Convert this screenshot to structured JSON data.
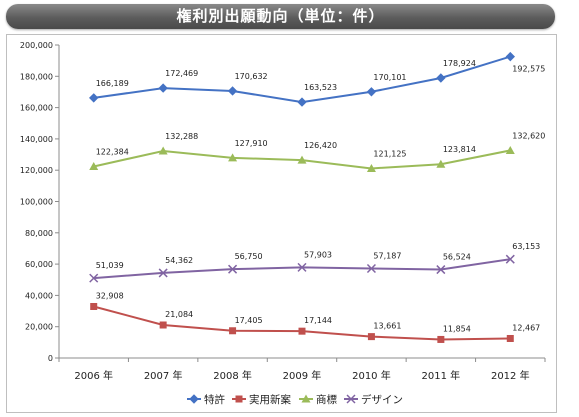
{
  "title": "権利別出願動向（単位：件）",
  "chart_data": {
    "type": "line",
    "title": "",
    "xlabel": "",
    "ylabel": "",
    "categories": [
      "2006 年",
      "2007 年",
      "2008 年",
      "2009 年",
      "2010 年",
      "2011 年",
      "2012 年"
    ],
    "ylim": [
      0,
      200000
    ],
    "yticks": [
      "0",
      "20,000",
      "40,000",
      "60,000",
      "80,000",
      "100,000",
      "120,000",
      "140,000",
      "160,000",
      "180,000",
      "200,000"
    ],
    "grid": false,
    "legend_position": "bottom",
    "series": [
      {
        "name": "特許",
        "color": "#4472c4",
        "marker": "diamond",
        "values": [
          166189,
          172469,
          170632,
          163523,
          170101,
          178924,
          192575
        ],
        "labels": [
          "166,189",
          "172,469",
          "170,632",
          "163,523",
          "170,101",
          "178,924",
          "192,575"
        ]
      },
      {
        "name": "実用新案",
        "color": "#c0504d",
        "marker": "square",
        "values": [
          32908,
          21084,
          17405,
          17144,
          13661,
          11854,
          12467
        ],
        "labels": [
          "32,908",
          "21,084",
          "17,405",
          "17,144",
          "13,661",
          "11,854",
          "12,467"
        ]
      },
      {
        "name": "商標",
        "color": "#9bbb59",
        "marker": "triangle",
        "values": [
          122384,
          132288,
          127910,
          126420,
          121125,
          123814,
          132620
        ],
        "labels": [
          "122,384",
          "132,288",
          "127,910",
          "126,420",
          "121,125",
          "123,814",
          "132,620"
        ]
      },
      {
        "name": "デザイン",
        "color": "#8064a2",
        "marker": "x",
        "values": [
          51039,
          54362,
          56750,
          57903,
          57187,
          56524,
          63153
        ],
        "labels": [
          "51,039",
          "54,362",
          "56,750",
          "57,903",
          "57,187",
          "56,524",
          "63,153"
        ]
      }
    ]
  }
}
